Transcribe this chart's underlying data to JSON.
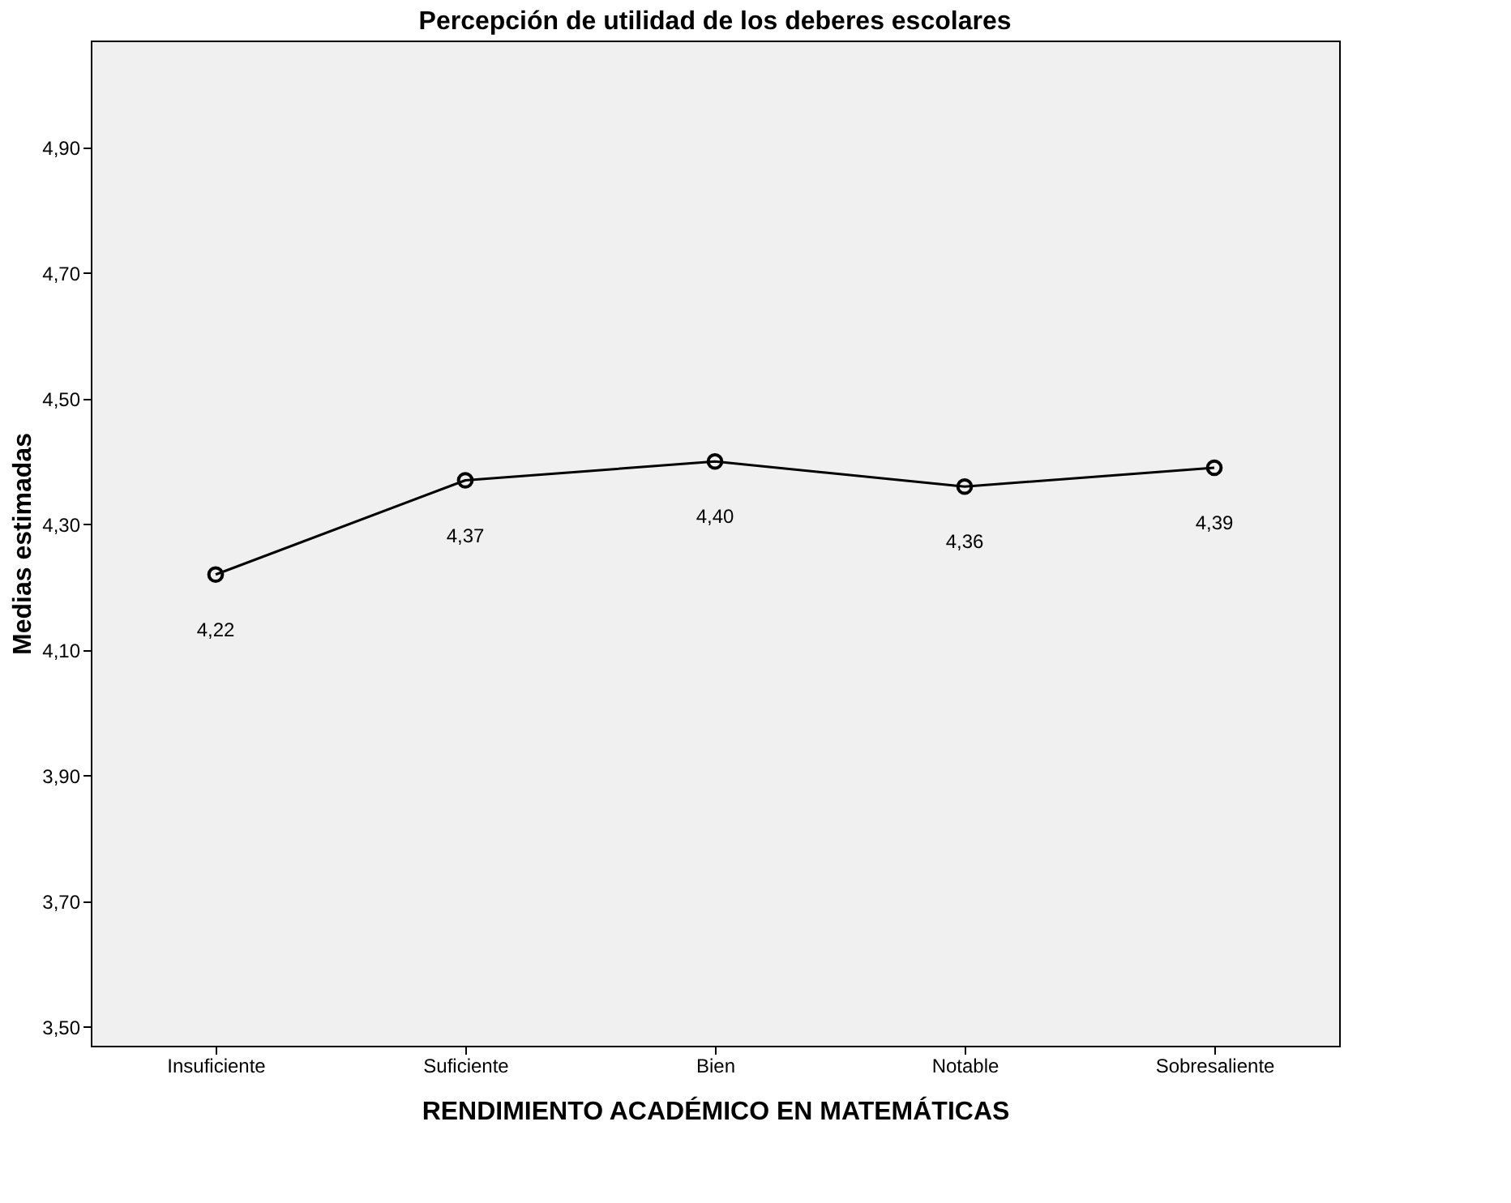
{
  "chart_data": {
    "type": "line",
    "title": "Percepción de utilidad de los deberes escolares",
    "xlabel": "RENDIMIENTO ACADÉMICO EN MATEMÁTICAS",
    "ylabel": "Medias estimadas",
    "categories": [
      "Insuficiente",
      "Suficiente",
      "Bien",
      "Notable",
      "Sobresaliente"
    ],
    "series": [
      {
        "color": "#000000",
        "values": [
          4.22,
          4.37,
          4.4,
          4.36,
          4.39
        ],
        "value_labels": [
          "4,22",
          "4,37",
          "4,40",
          "4,36",
          "4,39"
        ]
      }
    ],
    "ylim": [
      3.47,
      5.07
    ],
    "yticks": [
      {
        "value": 3.5,
        "label": "3,50"
      },
      {
        "value": 3.7,
        "label": "3,70"
      },
      {
        "value": 3.9,
        "label": "3,90"
      },
      {
        "value": 4.1,
        "label": "4,10"
      },
      {
        "value": 4.3,
        "label": "4,30"
      },
      {
        "value": 4.5,
        "label": "4,50"
      },
      {
        "value": 4.7,
        "label": "4,70"
      },
      {
        "value": 4.9,
        "label": "4,90"
      }
    ],
    "grid": false,
    "marker": "circle",
    "line_style": "solid"
  }
}
